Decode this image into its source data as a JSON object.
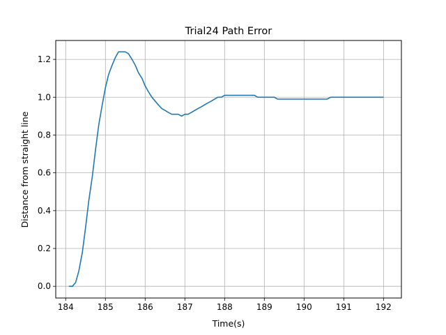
{
  "chart_data": {
    "type": "line",
    "title": "Trial24 Path Error",
    "xlabel": "Time(s)",
    "ylabel": "Distance from straight line",
    "xlim": [
      183.75,
      192.45
    ],
    "ylim": [
      -0.062,
      1.3
    ],
    "xticks": [
      184,
      185,
      186,
      187,
      188,
      189,
      190,
      191,
      192
    ],
    "xtick_labels": [
      "184",
      "185",
      "186",
      "187",
      "188",
      "189",
      "190",
      "191",
      "192"
    ],
    "yticks": [
      0.0,
      0.2,
      0.4,
      0.6,
      0.8,
      1.0,
      1.2
    ],
    "ytick_labels": [
      "0.0",
      "0.2",
      "0.4",
      "0.6",
      "0.8",
      "1.0",
      "1.2"
    ],
    "grid": true,
    "line_color": "#1f77b4",
    "series": [
      {
        "x": [
          184.08,
          184.17,
          184.25,
          184.33,
          184.42,
          184.5,
          184.58,
          184.67,
          184.75,
          184.83,
          184.92,
          185.0,
          185.08,
          185.17,
          185.25,
          185.33,
          185.42,
          185.5,
          185.58,
          185.67,
          185.75,
          185.83,
          185.92,
          186.0,
          186.08,
          186.17,
          186.25,
          186.33,
          186.42,
          186.5,
          186.58,
          186.67,
          186.75,
          186.83,
          186.92,
          187.0,
          187.08,
          187.17,
          187.25,
          187.33,
          187.42,
          187.5,
          187.58,
          187.67,
          187.75,
          187.83,
          187.92,
          188.0,
          188.08,
          188.17,
          188.25,
          188.33,
          188.42,
          188.5,
          188.58,
          188.67,
          188.75,
          188.83,
          188.92,
          189.0,
          189.08,
          189.17,
          189.25,
          189.33,
          189.42,
          189.5,
          189.58,
          189.67,
          189.75,
          189.83,
          189.92,
          190.0,
          190.08,
          190.17,
          190.25,
          190.33,
          190.42,
          190.5,
          190.58,
          190.67,
          190.75,
          190.83,
          190.92,
          191.0,
          191.08,
          191.17,
          191.25,
          191.33,
          191.42,
          191.5,
          191.58,
          191.67,
          191.75,
          191.83,
          191.92,
          192.0
        ],
        "y": [
          0.0,
          0.0,
          0.02,
          0.08,
          0.18,
          0.31,
          0.45,
          0.58,
          0.72,
          0.85,
          0.96,
          1.05,
          1.12,
          1.17,
          1.21,
          1.24,
          1.24,
          1.24,
          1.23,
          1.2,
          1.17,
          1.13,
          1.1,
          1.06,
          1.03,
          1.0,
          0.98,
          0.96,
          0.94,
          0.93,
          0.92,
          0.91,
          0.91,
          0.91,
          0.9,
          0.91,
          0.91,
          0.92,
          0.93,
          0.94,
          0.95,
          0.96,
          0.97,
          0.98,
          0.99,
          1.0,
          1.0,
          1.01,
          1.01,
          1.01,
          1.01,
          1.01,
          1.01,
          1.01,
          1.01,
          1.01,
          1.01,
          1.0,
          1.0,
          1.0,
          1.0,
          1.0,
          1.0,
          0.99,
          0.99,
          0.99,
          0.99,
          0.99,
          0.99,
          0.99,
          0.99,
          0.99,
          0.99,
          0.99,
          0.99,
          0.99,
          0.99,
          0.99,
          0.99,
          1.0,
          1.0,
          1.0,
          1.0,
          1.0,
          1.0,
          1.0,
          1.0,
          1.0,
          1.0,
          1.0,
          1.0,
          1.0,
          1.0,
          1.0,
          1.0,
          1.0
        ]
      }
    ]
  }
}
